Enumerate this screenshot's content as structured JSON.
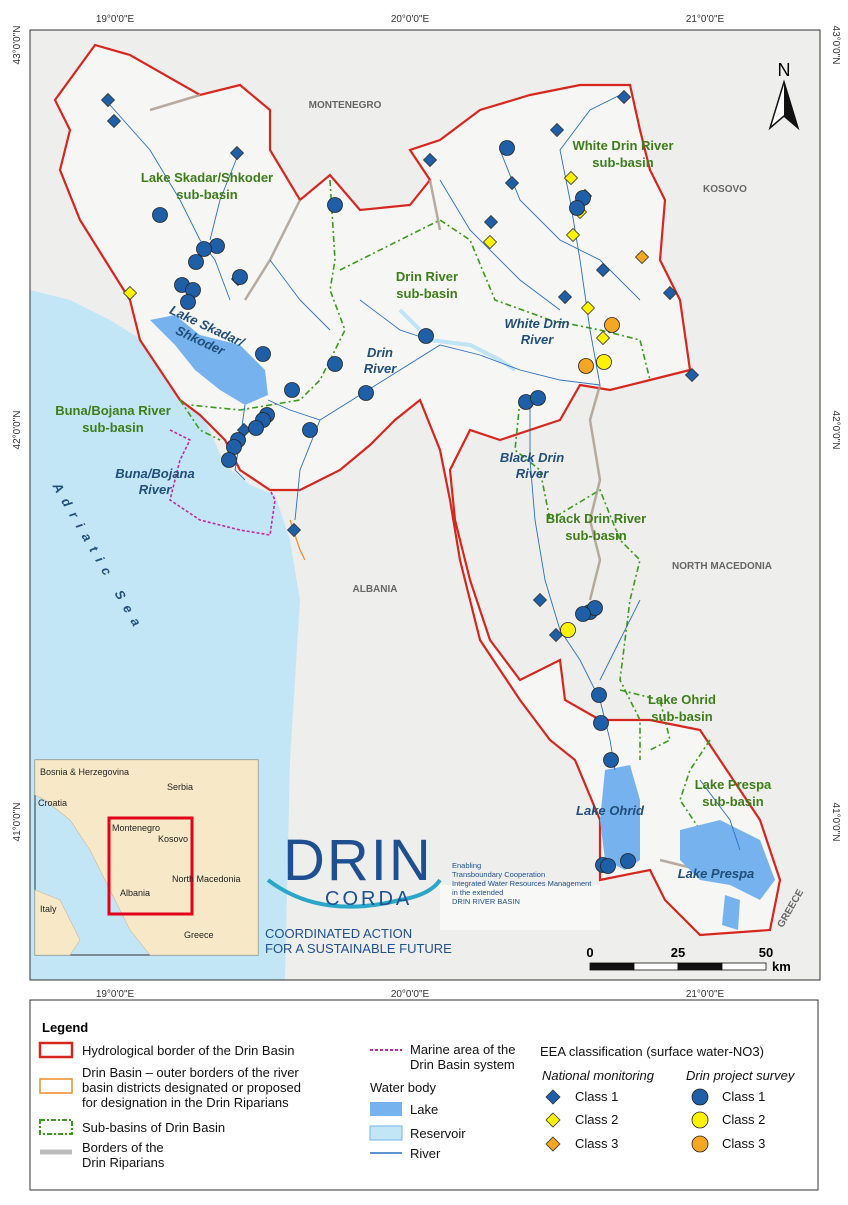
{
  "map": {
    "graticule": {
      "top": [
        "19°0'0\"E",
        "20°0'0\"E",
        "21°0'0\"E"
      ],
      "bottom": [
        "19°0'0\"E",
        "20°0'0\"E",
        "21°0'0\"E"
      ],
      "left": [
        "43°0'0\"N",
        "42°0'0\"N",
        "41°0'0\"N"
      ],
      "right": [
        "43°0'0\"N",
        "42°0'0\"N",
        "41°0'0\"N"
      ]
    },
    "north": "N",
    "countries": [
      "MONTENEGRO",
      "KOSOVO",
      "ALBANIA",
      "NORTH MACEDONIA",
      "GREECE"
    ],
    "sub_basins": [
      [
        "Lake Skadar/Shkoder",
        "sub-basin"
      ],
      [
        "White Drin River",
        "sub-basin"
      ],
      [
        "Drin River",
        "sub-basin"
      ],
      [
        "Buna/Bojana River",
        "sub-basin"
      ],
      [
        "Black Drin River",
        "sub-basin"
      ],
      [
        "Lake Ohrid",
        "sub-basin"
      ],
      [
        "Lake Prespa",
        "sub-basin"
      ]
    ],
    "water_labels": [
      [
        "Lake Skadar/",
        "Shkoder"
      ],
      [
        "Drin",
        "River"
      ],
      [
        "White Drin",
        "River"
      ],
      [
        "Black Drin",
        "River"
      ],
      [
        "Buna/Bojana",
        "River"
      ],
      [
        "Lake Ohrid"
      ],
      [
        "Lake Prespa"
      ],
      [
        "Adriatic Sea"
      ]
    ],
    "scale": {
      "ticks": [
        0,
        25,
        50
      ],
      "unit": "km"
    }
  },
  "inset": {
    "labels": [
      "Bosnia & Herzegovina",
      "Serbia",
      "Croatia",
      "Montenegro",
      "Kosovo",
      "North Macedonia",
      "Albania",
      "Italy",
      "Greece"
    ]
  },
  "logo": {
    "name": "DRIN",
    "sub": "CORDA",
    "tagline": [
      "COORDINATED ACTION",
      "FOR A SUSTAINABLE FUTURE"
    ],
    "partner": [
      "Enabling",
      "Transboundary Cooperation",
      "Integrated Water Resources Management",
      "in the extended",
      "DRIN RIVER BASIN"
    ]
  },
  "legend": {
    "title": "Legend",
    "items": [
      [
        "Hydrological border of the Drin Basin"
      ],
      [
        "Drin Basin – outer borders of the river",
        "basin districts designated or proposed",
        "for designation in the Drin Riparians"
      ],
      [
        "Sub-basins of Drin Basin"
      ],
      [
        "Borders of the",
        "Drin Riparians"
      ],
      [
        "Marine area of the",
        "Drin Basin system"
      ]
    ],
    "water_body": {
      "title": "Water body",
      "items": [
        "Lake",
        "Reservoir",
        "River"
      ]
    },
    "eea": {
      "title": "EEA classification (surface water-NO3)",
      "national": "National monitoring",
      "survey": "Drin project survey",
      "classes": [
        "Class 1",
        "Class 2",
        "Class 3"
      ]
    }
  }
}
